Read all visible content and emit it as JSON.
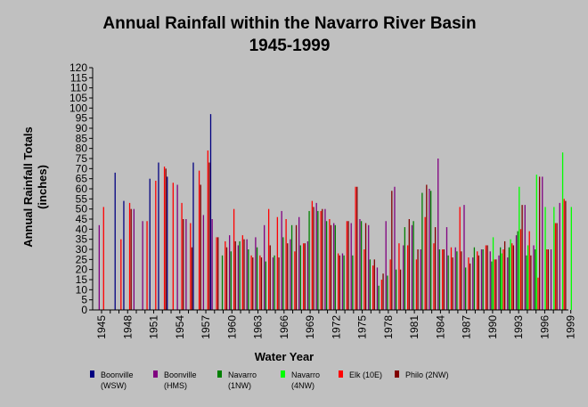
{
  "chart_data": {
    "type": "bar",
    "title": "Annual Rainfall within the Navarro River Basin",
    "subtitle": "1945-1999",
    "xlabel": "Water Year",
    "ylabel": "Annual Rainfall Totals",
    "ylabel_unit": "(inches)",
    "ylim": [
      0,
      120
    ],
    "yticks": [
      0,
      5,
      10,
      15,
      20,
      25,
      30,
      35,
      40,
      45,
      50,
      55,
      60,
      65,
      70,
      75,
      80,
      85,
      90,
      95,
      100,
      105,
      110,
      115,
      120
    ],
    "x": [
      1945,
      1946,
      1947,
      1948,
      1949,
      1950,
      1951,
      1952,
      1953,
      1954,
      1955,
      1956,
      1957,
      1958,
      1959,
      1960,
      1961,
      1962,
      1963,
      1964,
      1965,
      1966,
      1967,
      1968,
      1969,
      1970,
      1971,
      1972,
      1973,
      1974,
      1975,
      1976,
      1977,
      1978,
      1979,
      1980,
      1981,
      1982,
      1983,
      1984,
      1985,
      1986,
      1987,
      1988,
      1989,
      1990,
      1991,
      1992,
      1993,
      1994,
      1995,
      1996,
      1997,
      1998,
      1999
    ],
    "xtick_labels": [
      "1945",
      "1948",
      "1951",
      "1954",
      "1957",
      "1960",
      "1963",
      "1966",
      "1969",
      "1972",
      "1975",
      "1978",
      "1981",
      "1984",
      "1987",
      "1990",
      "1993",
      "1996",
      "1999"
    ],
    "grid": false,
    "legend_position": "bottom",
    "series": [
      {
        "name": "Boonville (WSW)",
        "color": "#000080",
        "values": [
          null,
          null,
          68,
          54,
          null,
          null,
          65,
          73,
          66,
          null,
          null,
          73,
          null,
          97,
          null,
          null,
          null,
          null,
          null,
          null,
          null,
          null,
          null,
          null,
          null,
          null,
          null,
          null,
          null,
          null,
          null,
          null,
          null,
          null,
          null,
          null,
          null,
          null,
          null,
          null,
          null,
          null,
          null,
          null,
          null,
          null,
          null,
          null,
          null,
          null,
          null,
          null,
          null,
          null,
          null
        ]
      },
      {
        "name": "Boonville (HMS)",
        "color": "#800080",
        "values": [
          42,
          null,
          null,
          null,
          50,
          44,
          null,
          null,
          null,
          62,
          45,
          null,
          47,
          45,
          null,
          37,
          32,
          35,
          36,
          42,
          26,
          49,
          35,
          46,
          34,
          53,
          50,
          43,
          28,
          43,
          45,
          42,
          21,
          44,
          61,
          32,
          42,
          30,
          60,
          75,
          41,
          31,
          52,
          26,
          30,
          29,
          27,
          26,
          37,
          52,
          32,
          66,
          30,
          53,
          null
        ]
      },
      {
        "name": "Navarro (1NW)",
        "color": "#008000",
        "values": [
          null,
          null,
          null,
          null,
          null,
          null,
          null,
          null,
          null,
          null,
          null,
          null,
          null,
          null,
          27,
          29,
          34,
          30,
          31,
          24,
          27,
          36,
          42,
          32,
          49,
          49,
          44,
          42,
          27,
          27,
          44,
          25,
          12,
          17,
          20,
          41,
          44,
          58,
          59,
          30,
          27,
          29,
          21,
          31,
          30,
          24,
          31,
          31,
          39,
          27,
          30,
          null,
          null,
          null,
          null
        ]
      },
      {
        "name": "Navarro (4NW)",
        "color": "#00ff00",
        "values": [
          null,
          null,
          null,
          null,
          null,
          null,
          null,
          null,
          null,
          null,
          null,
          null,
          null,
          null,
          null,
          null,
          null,
          null,
          null,
          null,
          null,
          null,
          null,
          null,
          null,
          null,
          null,
          null,
          null,
          null,
          null,
          null,
          null,
          null,
          null,
          null,
          null,
          null,
          null,
          null,
          null,
          null,
          null,
          null,
          null,
          36,
          28,
          35,
          61,
          32,
          67,
          51,
          51,
          78,
          51
        ]
      },
      {
        "name": "Elk (10E)",
        "color": "#ff0000",
        "values": [
          51,
          null,
          35,
          53,
          null,
          44,
          64,
          71,
          63,
          53,
          43,
          69,
          79,
          36,
          34,
          50,
          37,
          27,
          27,
          50,
          46,
          45,
          29,
          33,
          54,
          49,
          45,
          28,
          44,
          61,
          30,
          22,
          15,
          25,
          33,
          32,
          25,
          46,
          33,
          30,
          31,
          51,
          26,
          29,
          32,
          25,
          30,
          33,
          40,
          39,
          16,
          30,
          43,
          55,
          null
        ]
      },
      {
        "name": "Philo (2NW)",
        "color": "#800000",
        "values": [
          null,
          null,
          null,
          50,
          null,
          null,
          null,
          70,
          null,
          45,
          31,
          62,
          73,
          36,
          31,
          34,
          35,
          26,
          26,
          32,
          26,
          33,
          42,
          33,
          51,
          50,
          42,
          27,
          44,
          61,
          43,
          25,
          18,
          59,
          20,
          45,
          30,
          62,
          41,
          30,
          26,
          29,
          23,
          27,
          32,
          25,
          34,
          32,
          52,
          27,
          66,
          30,
          43,
          54,
          null
        ]
      }
    ]
  }
}
